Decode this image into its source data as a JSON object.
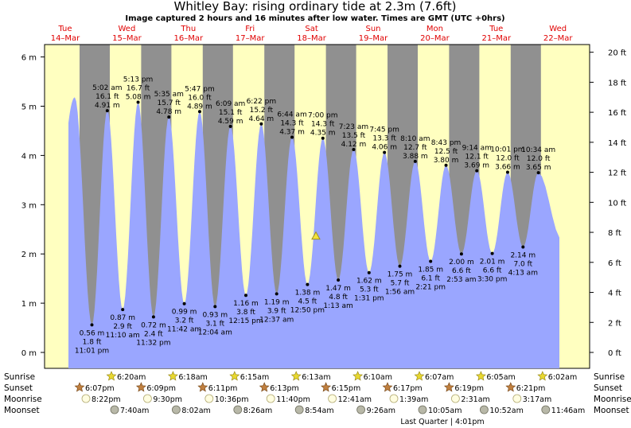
{
  "header": {
    "title": "Whitley Bay: rising  ordinary tide at 2.3m (7.6ft)",
    "subtitle": "Image captured 2 hours and 16 minutes after low water. Times are GMT (UTC +0hrs)"
  },
  "days": [
    {
      "name": "Tue",
      "date": "14–Mar"
    },
    {
      "name": "Wed",
      "date": "15–Mar"
    },
    {
      "name": "Thu",
      "date": "16–Mar"
    },
    {
      "name": "Fri",
      "date": "17–Mar"
    },
    {
      "name": "Sat",
      "date": "18–Mar"
    },
    {
      "name": "Sun",
      "date": "19–Mar"
    },
    {
      "name": "Mon",
      "date": "20–Mar"
    },
    {
      "name": "Tue",
      "date": "21–Mar"
    },
    {
      "name": "Wed",
      "date": "22–Mar"
    }
  ],
  "colors": {
    "day": "#ffffc0",
    "night": "#909090",
    "water": "#9aa6ff",
    "marker": "#f2e23a",
    "sun_star": "#e8d830",
    "sunset_star": "#c08040",
    "moonrise": "#fffde0",
    "moonset": "#b8b8a8"
  },
  "chart_data": {
    "type": "area",
    "title": "Whitley Bay: rising  ordinary tide at 2.3m (7.6ft)",
    "left_axis": {
      "unit": "m",
      "range": [
        -0.3,
        6.3
      ],
      "ticks": [
        "0 m",
        "1 m",
        "2 m",
        "3 m",
        "4 m",
        "5 m",
        "6 m"
      ]
    },
    "right_axis": {
      "unit": "ft",
      "ticks": [
        "0 ft",
        "2 ft",
        "4 ft",
        "6 ft",
        "8 ft",
        "10 ft",
        "12 ft",
        "14 ft",
        "16 ft",
        "18 ft",
        "20 ft"
      ]
    },
    "current": {
      "height_m": 2.3,
      "height_ft": 7.6
    },
    "tides": [
      {
        "type": "high",
        "height_m": 5.18
      },
      {
        "type": "low",
        "time": "11:01 pm",
        "height_m": 0.56,
        "m": "0.56 m",
        "ft": "1.8 ft"
      },
      {
        "type": "high",
        "time": "5:02 am",
        "height_m": 4.91,
        "m": "4.91 m",
        "ft": "16.1 ft"
      },
      {
        "type": "low",
        "time": "11:10 am",
        "height_m": 0.87,
        "m": "0.87 m",
        "ft": "2.9 ft"
      },
      {
        "type": "high",
        "time": "5:13 pm",
        "height_m": 5.08,
        "m": "5.08 m",
        "ft": "16.7 ft"
      },
      {
        "type": "low",
        "time": "11:32 pm",
        "height_m": 0.72,
        "m": "0.72 m",
        "ft": "2.4 ft"
      },
      {
        "type": "high",
        "time": "5:35 am",
        "height_m": 4.78,
        "m": "4.78 m",
        "ft": "15.7 ft"
      },
      {
        "type": "low",
        "time": "11:42 am",
        "height_m": 0.99,
        "m": "0.99 m",
        "ft": "3.2 ft"
      },
      {
        "type": "high",
        "time": "5:47 pm",
        "height_m": 4.89,
        "m": "4.89 m",
        "ft": "16.0 ft"
      },
      {
        "type": "low",
        "time": "12:04 am",
        "height_m": 0.93,
        "m": "0.93 m",
        "ft": "3.1 ft"
      },
      {
        "type": "high",
        "time": "6:09 am",
        "height_m": 4.59,
        "m": "4.59 m",
        "ft": "15.1 ft"
      },
      {
        "type": "low",
        "time": "12:15 pm",
        "height_m": 1.16,
        "m": "1.16 m",
        "ft": "3.8 ft"
      },
      {
        "type": "high",
        "time": "6:22 pm",
        "height_m": 4.64,
        "m": "4.64 m",
        "ft": "15.2 ft"
      },
      {
        "type": "low",
        "time": "12:37 am",
        "height_m": 1.19,
        "m": "1.19 m",
        "ft": "3.9 ft"
      },
      {
        "type": "high",
        "time": "6:44 am",
        "height_m": 4.37,
        "m": "4.37 m",
        "ft": "14.3 ft"
      },
      {
        "type": "low",
        "time": "12:50 pm",
        "height_m": 1.38,
        "m": "1.38 m",
        "ft": "4.5 ft"
      },
      {
        "type": "high",
        "time": "7:00 pm",
        "height_m": 4.35,
        "m": "4.35 m",
        "ft": "14.3 ft"
      },
      {
        "type": "low",
        "time": "1:13 am",
        "height_m": 1.47,
        "m": "1.47 m",
        "ft": "4.8 ft"
      },
      {
        "type": "high",
        "time": "7:23 am",
        "height_m": 4.12,
        "m": "4.12 m",
        "ft": "13.5 ft"
      },
      {
        "type": "low",
        "time": "1:31 pm",
        "height_m": 1.62,
        "m": "1.62 m",
        "ft": "5.3 ft"
      },
      {
        "type": "high",
        "time": "7:45 pm",
        "height_m": 4.06,
        "m": "4.06 m",
        "ft": "13.3 ft"
      },
      {
        "type": "low",
        "time": "1:56 am",
        "height_m": 1.75,
        "m": "1.75 m",
        "ft": "5.7 ft"
      },
      {
        "type": "high",
        "time": "8:10 am",
        "height_m": 3.88,
        "m": "3.88 m",
        "ft": "12.7 ft"
      },
      {
        "type": "low",
        "time": "2:21 pm",
        "height_m": 1.85,
        "m": "1.85 m",
        "ft": "6.1 ft"
      },
      {
        "type": "high",
        "time": "8:43 pm",
        "height_m": 3.8,
        "m": "3.80 m",
        "ft": "12.5 ft"
      },
      {
        "type": "low",
        "time": "2:53 am",
        "height_m": 2.0,
        "m": "2.00 m",
        "ft": "6.6 ft"
      },
      {
        "type": "high",
        "time": "9:14 am",
        "height_m": 3.69,
        "m": "3.69 m",
        "ft": "12.1 ft"
      },
      {
        "type": "low",
        "time": "3:30 pm",
        "height_m": 2.01,
        "m": "2.01 m",
        "ft": "6.6 ft"
      },
      {
        "type": "high",
        "time": "10:01 pm",
        "height_m": 3.66,
        "m": "3.66 m",
        "ft": "12.0 ft"
      },
      {
        "type": "low",
        "time": "4:13 am",
        "height_m": 2.14,
        "m": "2.14 m",
        "ft": "7.0 ft"
      },
      {
        "type": "high",
        "time": "10:34 am",
        "height_m": 3.65,
        "m": "3.65 m",
        "ft": "12.0 ft"
      }
    ]
  },
  "astro_labels": {
    "sunrise": "Sunrise",
    "sunset": "Sunset",
    "moonrise": "Moonrise",
    "moonset": "Moonset"
  },
  "sunrise": [
    "6:20am",
    "6:18am",
    "6:15am",
    "6:13am",
    "6:10am",
    "6:07am",
    "6:05am",
    "6:02am"
  ],
  "sunset": [
    "6:07pm",
    "6:09pm",
    "6:11pm",
    "6:13pm",
    "6:15pm",
    "6:17pm",
    "6:19pm",
    "6:21pm"
  ],
  "moonrise": [
    "8:22pm",
    "9:30pm",
    "10:36pm",
    "11:40pm",
    "12:41am",
    "1:39am",
    "2:31am",
    "3:17am"
  ],
  "moonset": [
    "7:40am",
    "8:02am",
    "8:26am",
    "8:54am",
    "9:26am",
    "10:05am",
    "10:52am",
    "11:46am"
  ],
  "moon_phase": "Last Quarter | 4:01pm"
}
